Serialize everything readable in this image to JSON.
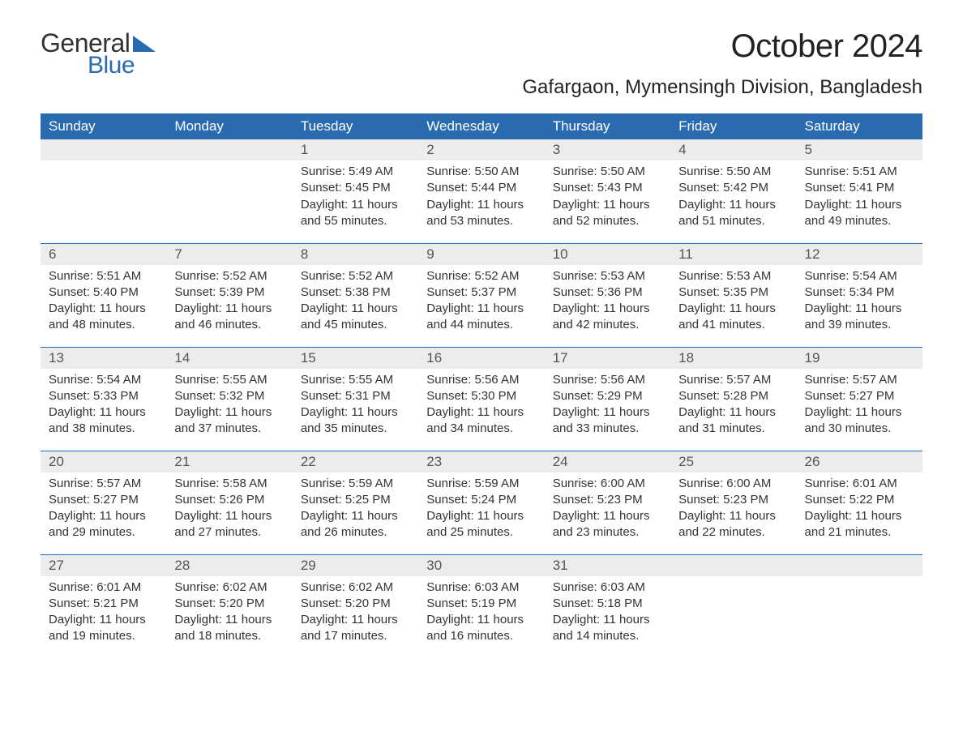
{
  "brand": {
    "word1": "General",
    "word2": "Blue",
    "color1": "#333333",
    "color2": "#2a6bb0"
  },
  "title": "October 2024",
  "location": "Gafargaon, Mymensingh Division, Bangladesh",
  "header_bg": "#2a6bb0",
  "header_fg": "#ffffff",
  "daynum_bg": "#ececec",
  "row_border": "#2a6bb0",
  "weekdays": [
    "Sunday",
    "Monday",
    "Tuesday",
    "Wednesday",
    "Thursday",
    "Friday",
    "Saturday"
  ],
  "weeks": [
    [
      null,
      null,
      {
        "d": "1",
        "sunrise": "5:49 AM",
        "sunset": "5:45 PM",
        "daylight": "11 hours and 55 minutes."
      },
      {
        "d": "2",
        "sunrise": "5:50 AM",
        "sunset": "5:44 PM",
        "daylight": "11 hours and 53 minutes."
      },
      {
        "d": "3",
        "sunrise": "5:50 AM",
        "sunset": "5:43 PM",
        "daylight": "11 hours and 52 minutes."
      },
      {
        "d": "4",
        "sunrise": "5:50 AM",
        "sunset": "5:42 PM",
        "daylight": "11 hours and 51 minutes."
      },
      {
        "d": "5",
        "sunrise": "5:51 AM",
        "sunset": "5:41 PM",
        "daylight": "11 hours and 49 minutes."
      }
    ],
    [
      {
        "d": "6",
        "sunrise": "5:51 AM",
        "sunset": "5:40 PM",
        "daylight": "11 hours and 48 minutes."
      },
      {
        "d": "7",
        "sunrise": "5:52 AM",
        "sunset": "5:39 PM",
        "daylight": "11 hours and 46 minutes."
      },
      {
        "d": "8",
        "sunrise": "5:52 AM",
        "sunset": "5:38 PM",
        "daylight": "11 hours and 45 minutes."
      },
      {
        "d": "9",
        "sunrise": "5:52 AM",
        "sunset": "5:37 PM",
        "daylight": "11 hours and 44 minutes."
      },
      {
        "d": "10",
        "sunrise": "5:53 AM",
        "sunset": "5:36 PM",
        "daylight": "11 hours and 42 minutes."
      },
      {
        "d": "11",
        "sunrise": "5:53 AM",
        "sunset": "5:35 PM",
        "daylight": "11 hours and 41 minutes."
      },
      {
        "d": "12",
        "sunrise": "5:54 AM",
        "sunset": "5:34 PM",
        "daylight": "11 hours and 39 minutes."
      }
    ],
    [
      {
        "d": "13",
        "sunrise": "5:54 AM",
        "sunset": "5:33 PM",
        "daylight": "11 hours and 38 minutes."
      },
      {
        "d": "14",
        "sunrise": "5:55 AM",
        "sunset": "5:32 PM",
        "daylight": "11 hours and 37 minutes."
      },
      {
        "d": "15",
        "sunrise": "5:55 AM",
        "sunset": "5:31 PM",
        "daylight": "11 hours and 35 minutes."
      },
      {
        "d": "16",
        "sunrise": "5:56 AM",
        "sunset": "5:30 PM",
        "daylight": "11 hours and 34 minutes."
      },
      {
        "d": "17",
        "sunrise": "5:56 AM",
        "sunset": "5:29 PM",
        "daylight": "11 hours and 33 minutes."
      },
      {
        "d": "18",
        "sunrise": "5:57 AM",
        "sunset": "5:28 PM",
        "daylight": "11 hours and 31 minutes."
      },
      {
        "d": "19",
        "sunrise": "5:57 AM",
        "sunset": "5:27 PM",
        "daylight": "11 hours and 30 minutes."
      }
    ],
    [
      {
        "d": "20",
        "sunrise": "5:57 AM",
        "sunset": "5:27 PM",
        "daylight": "11 hours and 29 minutes."
      },
      {
        "d": "21",
        "sunrise": "5:58 AM",
        "sunset": "5:26 PM",
        "daylight": "11 hours and 27 minutes."
      },
      {
        "d": "22",
        "sunrise": "5:59 AM",
        "sunset": "5:25 PM",
        "daylight": "11 hours and 26 minutes."
      },
      {
        "d": "23",
        "sunrise": "5:59 AM",
        "sunset": "5:24 PM",
        "daylight": "11 hours and 25 minutes."
      },
      {
        "d": "24",
        "sunrise": "6:00 AM",
        "sunset": "5:23 PM",
        "daylight": "11 hours and 23 minutes."
      },
      {
        "d": "25",
        "sunrise": "6:00 AM",
        "sunset": "5:23 PM",
        "daylight": "11 hours and 22 minutes."
      },
      {
        "d": "26",
        "sunrise": "6:01 AM",
        "sunset": "5:22 PM",
        "daylight": "11 hours and 21 minutes."
      }
    ],
    [
      {
        "d": "27",
        "sunrise": "6:01 AM",
        "sunset": "5:21 PM",
        "daylight": "11 hours and 19 minutes."
      },
      {
        "d": "28",
        "sunrise": "6:02 AM",
        "sunset": "5:20 PM",
        "daylight": "11 hours and 18 minutes."
      },
      {
        "d": "29",
        "sunrise": "6:02 AM",
        "sunset": "5:20 PM",
        "daylight": "11 hours and 17 minutes."
      },
      {
        "d": "30",
        "sunrise": "6:03 AM",
        "sunset": "5:19 PM",
        "daylight": "11 hours and 16 minutes."
      },
      {
        "d": "31",
        "sunrise": "6:03 AM",
        "sunset": "5:18 PM",
        "daylight": "11 hours and 14 minutes."
      },
      null,
      null
    ]
  ],
  "labels": {
    "sunrise": "Sunrise: ",
    "sunset": "Sunset: ",
    "daylight": "Daylight: "
  }
}
